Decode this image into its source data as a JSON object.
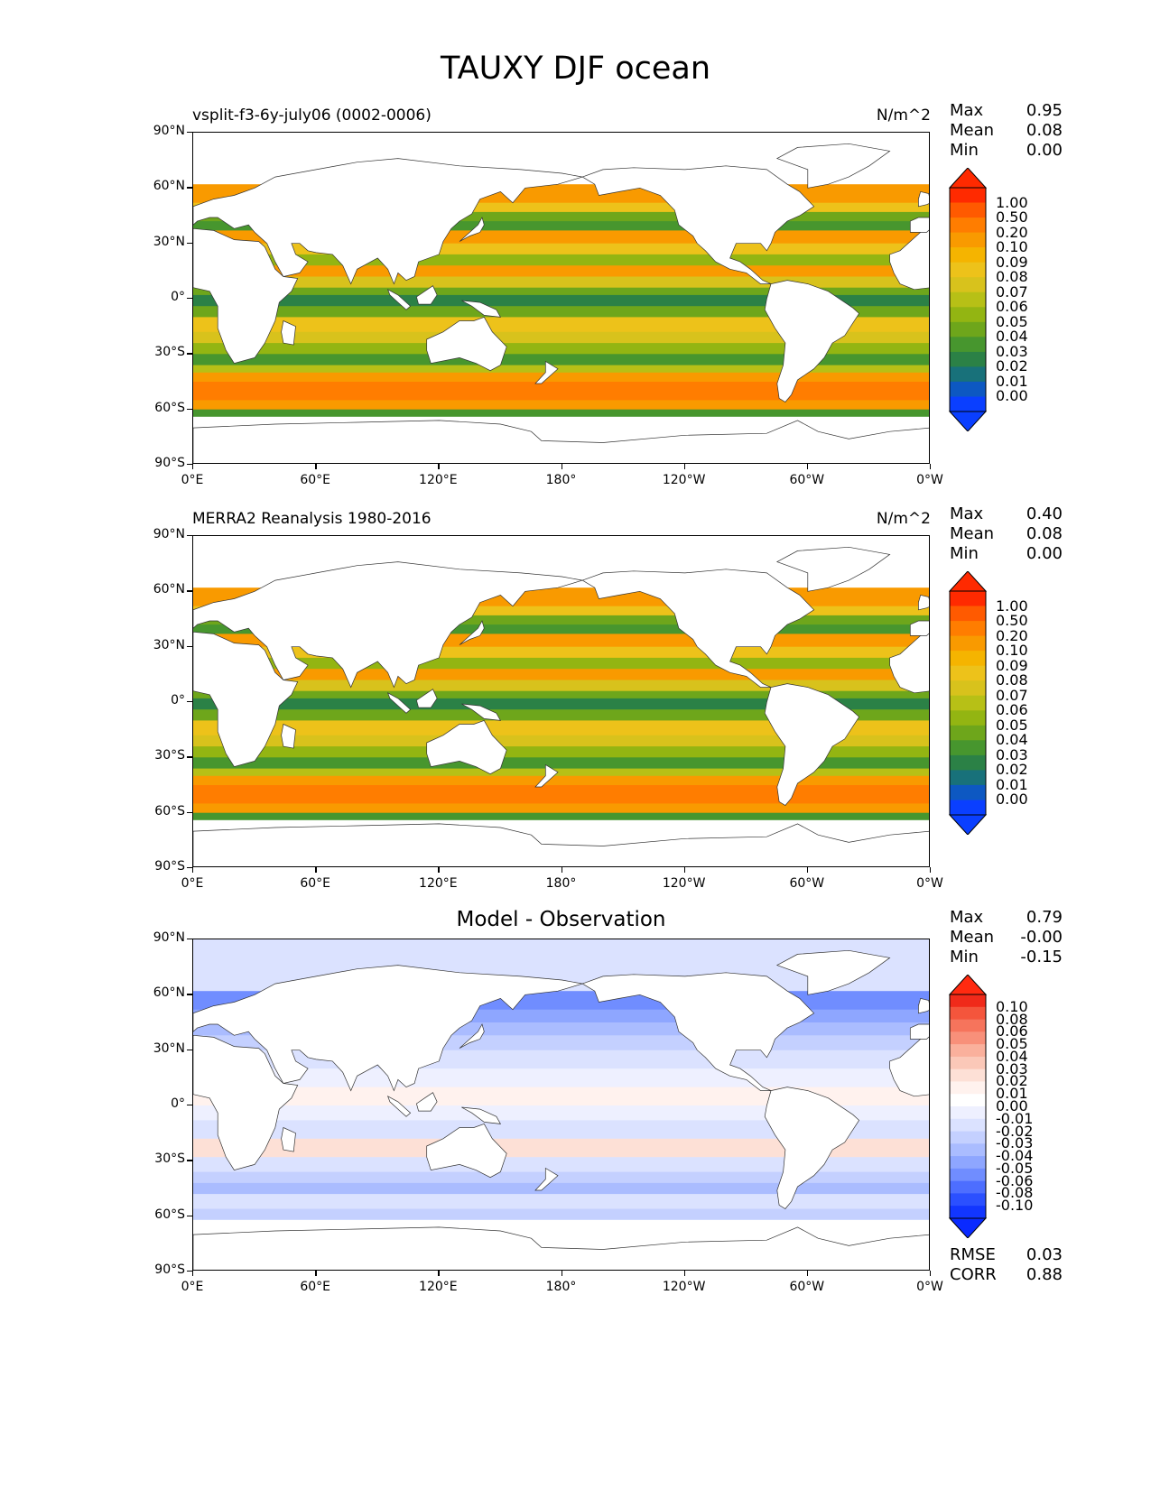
{
  "figure": {
    "title": "TAUXY DJF ocean"
  },
  "lat_ticks": [
    "90°N",
    "60°N",
    "30°N",
    "0°",
    "30°S",
    "60°S",
    "90°S"
  ],
  "lon_ticks": [
    "0°E",
    "60°E",
    "120°E",
    "180°",
    "120°W",
    "60°W",
    "0°W"
  ],
  "panels": [
    {
      "id": "model",
      "title_left": "vsplit-f3-6y-july06 (0002-0006)",
      "title_center": "",
      "units": "N/m^2",
      "stats": [
        {
          "label": "Max",
          "value": "0.95"
        },
        {
          "label": "Mean",
          "value": "0.08"
        },
        {
          "label": "Min",
          "value": "0.00"
        }
      ],
      "colorbar": {
        "labels": [
          "1.00",
          "0.50",
          "0.20",
          "0.10",
          "0.09",
          "0.08",
          "0.07",
          "0.06",
          "0.05",
          "0.04",
          "0.03",
          "0.02",
          "0.01",
          "0.00"
        ],
        "colors": [
          "#ff2a00",
          "#ff5a00",
          "#ff7d00",
          "#f99a00",
          "#f5b400",
          "#edc21a",
          "#d8c21c",
          "#b7c016",
          "#93b512",
          "#6ea61b",
          "#47962e",
          "#2b8146",
          "#18717a",
          "#0d58c2",
          "#0a3fff"
        ],
        "top_color": "#ff2a00",
        "bottom_color": "#0a3fff"
      },
      "footer": []
    },
    {
      "id": "observation",
      "title_left": "MERRA2 Reanalysis 1980-2016",
      "title_center": "",
      "units": "N/m^2",
      "stats": [
        {
          "label": "Max",
          "value": "0.40"
        },
        {
          "label": "Mean",
          "value": "0.08"
        },
        {
          "label": "Min",
          "value": "0.00"
        }
      ],
      "colorbar": {
        "labels": [
          "1.00",
          "0.50",
          "0.20",
          "0.10",
          "0.09",
          "0.08",
          "0.07",
          "0.06",
          "0.05",
          "0.04",
          "0.03",
          "0.02",
          "0.01",
          "0.00"
        ],
        "colors": [
          "#ff2a00",
          "#ff5a00",
          "#ff7d00",
          "#f99a00",
          "#f5b400",
          "#edc21a",
          "#d8c21c",
          "#b7c016",
          "#93b512",
          "#6ea61b",
          "#47962e",
          "#2b8146",
          "#18717a",
          "#0d58c2",
          "#0a3fff"
        ],
        "top_color": "#ff2a00",
        "bottom_color": "#0a3fff"
      },
      "footer": []
    },
    {
      "id": "difference",
      "title_left": "",
      "title_center": "Model - Observation",
      "units": "",
      "stats": [
        {
          "label": "Max",
          "value": "0.79"
        },
        {
          "label": "Mean",
          "value": "-0.00"
        },
        {
          "label": "Min",
          "value": "-0.15"
        }
      ],
      "colorbar": {
        "labels": [
          "0.10",
          "0.08",
          "0.06",
          "0.05",
          "0.04",
          "0.03",
          "0.02",
          "0.01",
          "0.00",
          "-0.01",
          "-0.02",
          "-0.03",
          "-0.04",
          "-0.05",
          "-0.06",
          "-0.08",
          "-0.10"
        ],
        "colors": [
          "#f02a1a",
          "#f4553c",
          "#f6745c",
          "#f8907a",
          "#fab09c",
          "#fbc8b8",
          "#fde0d6",
          "#fff2ee",
          "#ffffff",
          "#eef0ff",
          "#dbe2ff",
          "#c4d0ff",
          "#aabcff",
          "#8ea6ff",
          "#708dff",
          "#4d6eff",
          "#2b50ff",
          "#1236ff"
        ],
        "top_color": "#ff2a10",
        "bottom_color": "#0a2aff"
      },
      "footer": [
        {
          "label": "RMSE",
          "value": "0.03"
        },
        {
          "label": "CORR",
          "value": "0.88"
        }
      ]
    }
  ],
  "chart_data": [
    {
      "type": "heatmap",
      "title": "vsplit-f3-6y-july06 (0002-0006)",
      "units": "N/m^2",
      "xlabel": "",
      "ylabel": "",
      "x_ticks": [
        "0°E",
        "60°E",
        "120°E",
        "180°",
        "120°W",
        "60°W",
        "0°W"
      ],
      "y_ticks": [
        "90°N",
        "60°N",
        "30°N",
        "0°",
        "30°S",
        "60°S",
        "90°S"
      ],
      "xlim": [
        0,
        360
      ],
      "ylim": [
        -90,
        90
      ],
      "stats": {
        "max": 0.95,
        "mean": 0.08,
        "min": 0.0
      },
      "levels": [
        0.0,
        0.01,
        0.02,
        0.03,
        0.04,
        0.05,
        0.06,
        0.07,
        0.08,
        0.09,
        0.1,
        0.2,
        0.5,
        1.0
      ]
    },
    {
      "type": "heatmap",
      "title": "MERRA2 Reanalysis 1980-2016",
      "units": "N/m^2",
      "xlabel": "",
      "ylabel": "",
      "x_ticks": [
        "0°E",
        "60°E",
        "120°E",
        "180°",
        "120°W",
        "60°W",
        "0°W"
      ],
      "y_ticks": [
        "90°N",
        "60°N",
        "30°N",
        "0°",
        "30°S",
        "60°S",
        "90°S"
      ],
      "xlim": [
        0,
        360
      ],
      "ylim": [
        -90,
        90
      ],
      "stats": {
        "max": 0.4,
        "mean": 0.08,
        "min": 0.0
      },
      "levels": [
        0.0,
        0.01,
        0.02,
        0.03,
        0.04,
        0.05,
        0.06,
        0.07,
        0.08,
        0.09,
        0.1,
        0.2,
        0.5,
        1.0
      ]
    },
    {
      "type": "heatmap",
      "title": "Model - Observation",
      "xlabel": "",
      "ylabel": "",
      "x_ticks": [
        "0°E",
        "60°E",
        "120°E",
        "180°",
        "120°W",
        "60°W",
        "0°W"
      ],
      "y_ticks": [
        "90°N",
        "60°N",
        "30°N",
        "0°",
        "30°S",
        "60°S",
        "90°S"
      ],
      "xlim": [
        0,
        360
      ],
      "ylim": [
        -90,
        90
      ],
      "stats": {
        "max": 0.79,
        "mean": -0.0,
        "min": -0.15,
        "rmse": 0.03,
        "corr": 0.88
      },
      "levels": [
        -0.1,
        -0.08,
        -0.06,
        -0.05,
        -0.04,
        -0.03,
        -0.02,
        -0.01,
        0.0,
        0.01,
        0.02,
        0.03,
        0.04,
        0.05,
        0.06,
        0.08,
        0.1
      ]
    }
  ]
}
